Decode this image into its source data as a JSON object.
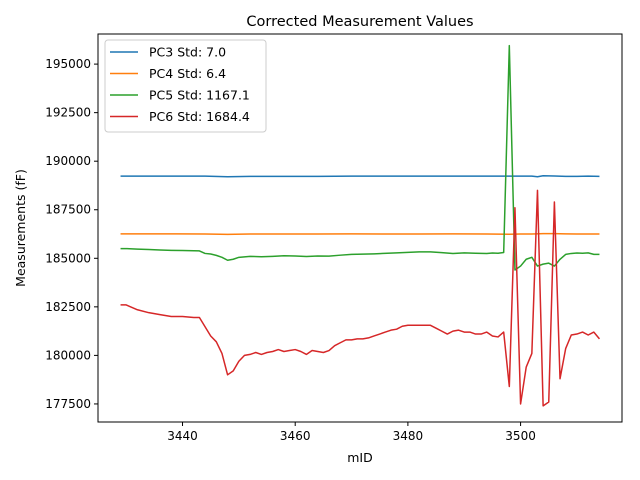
{
  "chart_data": {
    "type": "line",
    "title": "Corrected Measurement Values",
    "xlabel": "mID",
    "ylabel": "Measurements (fF)",
    "xlim": [
      3425,
      3518
    ],
    "ylim": [
      176570,
      196550
    ],
    "xticks": [
      3440,
      3460,
      3480,
      3500
    ],
    "yticks": [
      177500,
      180000,
      182500,
      185000,
      187500,
      190000,
      192500,
      195000
    ],
    "grid": false,
    "legend_position": "top-left",
    "series": [
      {
        "name": "PC3 Std: 7.0",
        "color": "#1f77b4",
        "x": [
          3429,
          3434,
          3439,
          3444,
          3448,
          3452,
          3458,
          3464,
          3470,
          3476,
          3482,
          3488,
          3494,
          3500,
          3502,
          3503,
          3504,
          3506,
          3508,
          3510,
          3512,
          3514
        ],
        "values": [
          189230,
          189230,
          189230,
          189230,
          189200,
          189220,
          189220,
          189220,
          189230,
          189230,
          189230,
          189230,
          189230,
          189230,
          189230,
          189200,
          189250,
          189240,
          189220,
          189220,
          189230,
          189220
        ]
      },
      {
        "name": "PC4 Std: 6.4",
        "color": "#ff7f0e",
        "x": [
          3429,
          3434,
          3439,
          3444,
          3448,
          3452,
          3458,
          3464,
          3470,
          3476,
          3482,
          3488,
          3494,
          3498,
          3500,
          3502,
          3504,
          3506,
          3508,
          3510,
          3512,
          3514
        ],
        "values": [
          186260,
          186260,
          186260,
          186250,
          186230,
          186250,
          186250,
          186250,
          186260,
          186250,
          186250,
          186260,
          186250,
          186240,
          186250,
          186250,
          186270,
          186270,
          186260,
          186250,
          186250,
          186250
        ]
      },
      {
        "name": "PC5 Std: 1167.1",
        "color": "#2ca02c",
        "x": [
          3429,
          3430,
          3432,
          3434,
          3436,
          3438,
          3440,
          3443,
          3444,
          3445,
          3446,
          3447,
          3448,
          3449,
          3450,
          3452,
          3454,
          3456,
          3458,
          3460,
          3462,
          3464,
          3466,
          3468,
          3470,
          3474,
          3478,
          3482,
          3484,
          3486,
          3488,
          3490,
          3492,
          3494,
          3495,
          3496,
          3497,
          3498,
          3499,
          3500,
          3501,
          3502,
          3503,
          3504,
          3505,
          3506,
          3507,
          3508,
          3509,
          3510,
          3511,
          3512,
          3513,
          3514
        ],
        "values": [
          185500,
          185500,
          185470,
          185450,
          185430,
          185410,
          185400,
          185380,
          185250,
          185220,
          185150,
          185050,
          184900,
          184950,
          185050,
          185100,
          185080,
          185100,
          185130,
          185120,
          185090,
          185120,
          185110,
          185160,
          185200,
          185230,
          185280,
          185330,
          185330,
          185290,
          185250,
          185280,
          185260,
          185250,
          185270,
          185260,
          185300,
          195950,
          184400,
          184600,
          184950,
          185050,
          184600,
          184700,
          184750,
          184600,
          184950,
          185200,
          185250,
          185270,
          185260,
          185280,
          185200,
          185200
        ]
      },
      {
        "name": "PC6 Std: 1684.4",
        "color": "#d62728",
        "x": [
          3429,
          3430,
          3432,
          3434,
          3436,
          3438,
          3440,
          3442,
          3443,
          3445,
          3446,
          3447,
          3448,
          3449,
          3450,
          3451,
          3452,
          3453,
          3454,
          3455,
          3456,
          3457,
          3458,
          3459,
          3460,
          3461,
          3462,
          3463,
          3464,
          3465,
          3466,
          3467,
          3468,
          3469,
          3470,
          3471,
          3472,
          3473,
          3474,
          3475,
          3476,
          3477,
          3478,
          3479,
          3480,
          3481,
          3482,
          3483,
          3484,
          3485,
          3486,
          3487,
          3488,
          3489,
          3490,
          3491,
          3492,
          3493,
          3494,
          3495,
          3496,
          3497,
          3498,
          3499,
          3500,
          3501,
          3502,
          3503,
          3504,
          3505,
          3506,
          3507,
          3508,
          3509,
          3510,
          3511,
          3512,
          3513,
          3514
        ],
        "values": [
          182600,
          182600,
          182350,
          182200,
          182100,
          182000,
          182000,
          181950,
          181950,
          181000,
          180700,
          180100,
          179000,
          179200,
          179700,
          180000,
          180050,
          180150,
          180050,
          180150,
          180200,
          180300,
          180200,
          180250,
          180300,
          180200,
          180050,
          180250,
          180200,
          180150,
          180250,
          180500,
          180650,
          180800,
          180800,
          180850,
          180850,
          180900,
          181000,
          181100,
          181200,
          181300,
          181350,
          181500,
          181550,
          181550,
          181550,
          181550,
          181550,
          181400,
          181250,
          181100,
          181250,
          181300,
          181200,
          181200,
          181100,
          181100,
          181200,
          181000,
          180950,
          181200,
          178400,
          187600,
          177500,
          179400,
          180100,
          188500,
          177400,
          177600,
          187900,
          178800,
          180350,
          181050,
          181100,
          181200,
          181050,
          181200,
          180850
        ]
      }
    ]
  }
}
